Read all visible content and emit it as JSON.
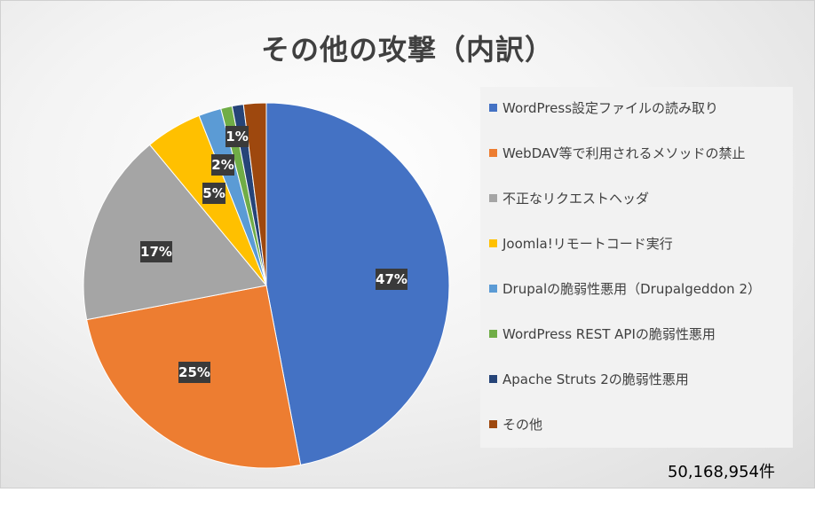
{
  "chart_data": {
    "type": "pie",
    "title": "その他の攻撃（内訳）",
    "categories": [
      "WordPress設定ファイルの読み取り",
      "WebDAV等で利用されるメソッドの禁止",
      "不正なリクエストヘッダ",
      "Joomla!リモートコード実行",
      "Drupalの脆弱性悪用（Drupalgeddon 2）",
      "WordPress REST APIの脆弱性悪用",
      "Apache Struts 2の脆弱性悪用",
      "その他"
    ],
    "values": [
      47,
      25,
      17,
      5,
      2,
      1,
      1,
      2
    ],
    "data_labels": [
      "47%",
      "25%",
      "17%",
      "5%",
      "2%",
      "",
      "1%",
      ""
    ],
    "colors": [
      "#4472c4",
      "#ed7d31",
      "#a5a5a5",
      "#ffc000",
      "#5b9bd5",
      "#70ad47",
      "#264478",
      "#9e480e"
    ],
    "legend_position": "right",
    "total": "50,168,954件"
  }
}
